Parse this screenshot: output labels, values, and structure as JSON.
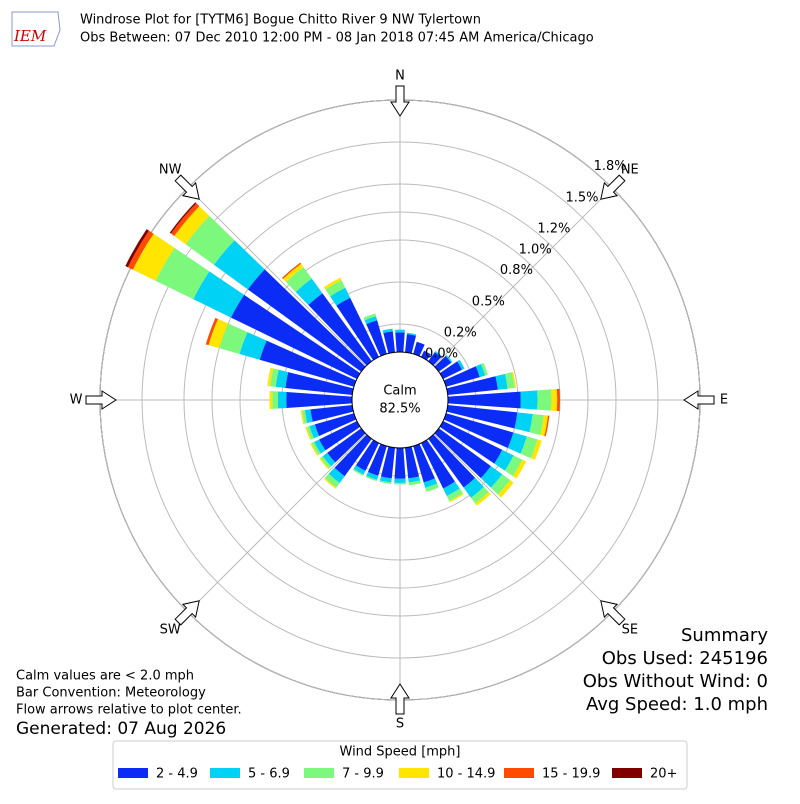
{
  "chart_data": {
    "type": "windrose",
    "title": "Windrose Plot for [TYTM6] Bogue Chitto River 9 NW Tylertown",
    "subtitle": "Obs Between: 07 Dec 2010 12:00 PM - 08 Jan 2018 07:45 AM America/Chicago",
    "logo": "IEM",
    "compass": [
      "N",
      "NE",
      "E",
      "SE",
      "S",
      "SW",
      "W",
      "NW"
    ],
    "x": [
      0,
      10,
      20,
      30,
      40,
      50,
      60,
      70,
      80,
      90,
      100,
      110,
      120,
      130,
      140,
      150,
      160,
      170,
      180,
      190,
      200,
      210,
      220,
      230,
      240,
      250,
      260,
      270,
      280,
      290,
      300,
      310,
      320,
      330,
      340,
      350
    ],
    "rlim": [
      0,
      1.8
    ],
    "rticks": [
      {
        "value": 0,
        "label": "0.0%"
      },
      {
        "value": 0.2,
        "label": "0.2%"
      },
      {
        "value": 0.5,
        "label": "0.5%"
      },
      {
        "value": 0.8,
        "label": "0.8%"
      },
      {
        "value": 1.0,
        "label": "1.0%"
      },
      {
        "value": 1.2,
        "label": "1.2%"
      },
      {
        "value": 1.5,
        "label": "1.5%"
      },
      {
        "value": 1.8,
        "label": "1.8%"
      }
    ],
    "calm": {
      "label": "Calm",
      "values": [
        82.5
      ],
      "value_labels": [
        "82.5%"
      ]
    },
    "legend_title": "Wind Speed [mph]",
    "series": [
      {
        "name": "2 - 4.9",
        "color": "#0a2cf5",
        "values": [
          0.14,
          0.13,
          0.09,
          0.05,
          0.08,
          0.11,
          0.15,
          0.25,
          0.36,
          0.52,
          0.5,
          0.5,
          0.47,
          0.46,
          0.43,
          0.36,
          0.27,
          0.22,
          0.22,
          0.22,
          0.22,
          0.22,
          0.33,
          0.3,
          0.3,
          0.29,
          0.3,
          0.47,
          0.48,
          0.7,
          1.0,
          1.0,
          0.6,
          0.47,
          0.25,
          0.15
        ]
      },
      {
        "name": "5 - 6.9",
        "color": "#00d2f5",
        "values": [
          0.02,
          0.01,
          0,
          0,
          0.01,
          0.01,
          0.02,
          0.04,
          0.07,
          0.12,
          0.11,
          0.1,
          0.09,
          0.1,
          0.09,
          0.06,
          0.04,
          0.03,
          0.03,
          0.03,
          0.03,
          0.03,
          0.06,
          0.04,
          0.04,
          0.04,
          0.04,
          0.06,
          0.07,
          0.15,
          0.3,
          0.3,
          0.13,
          0.08,
          0.03,
          0.02
        ]
      },
      {
        "name": "7 - 9.9",
        "color": "#7cf87c",
        "values": [
          0,
          0,
          0,
          0,
          0,
          0,
          0,
          0.02,
          0.05,
          0.1,
          0.08,
          0.08,
          0.07,
          0.07,
          0.05,
          0.04,
          0.03,
          0.02,
          0.01,
          0.01,
          0.01,
          0.01,
          0.04,
          0.02,
          0.02,
          0.02,
          0.02,
          0.04,
          0.04,
          0.15,
          0.3,
          0.25,
          0.1,
          0.06,
          0.02,
          0
        ]
      },
      {
        "name": "10 - 14.9",
        "color": "#ffe500",
        "values": [
          0,
          0,
          0,
          0,
          0,
          0,
          0,
          0,
          0.01,
          0.04,
          0.03,
          0.03,
          0.03,
          0.03,
          0.02,
          0.01,
          0,
          0,
          0,
          0,
          0,
          0,
          0.01,
          0.01,
          0.01,
          0.01,
          0.01,
          0.02,
          0.02,
          0.08,
          0.18,
          0.1,
          0.03,
          0.02,
          0,
          0
        ]
      },
      {
        "name": "15 - 19.9",
        "color": "#ff4a00",
        "values": [
          0,
          0,
          0,
          0,
          0,
          0,
          0,
          0,
          0,
          0.02,
          0.01,
          0,
          0,
          0,
          0,
          0,
          0,
          0,
          0,
          0,
          0,
          0,
          0,
          0,
          0,
          0,
          0,
          0,
          0,
          0.02,
          0.04,
          0.03,
          0.01,
          0,
          0,
          0
        ]
      },
      {
        "name": "20+",
        "color": "#800000",
        "values": [
          0,
          0,
          0,
          0,
          0,
          0,
          0,
          0,
          0,
          0,
          0,
          0,
          0,
          0,
          0,
          0,
          0,
          0,
          0,
          0,
          0,
          0,
          0,
          0,
          0,
          0,
          0,
          0,
          0,
          0,
          0.02,
          0.01,
          0,
          0,
          0,
          0
        ]
      }
    ],
    "notes": [
      "Calm values are < 2.0 mph",
      "Bar Convention: Meteorology",
      "Flow arrows relative to plot center."
    ],
    "generated": "Generated: 07 Aug 2026",
    "summary": [
      "Summary",
      "Obs Used: 245196",
      "Obs Without Wind: 0",
      "Avg Speed: 1.0 mph"
    ]
  }
}
